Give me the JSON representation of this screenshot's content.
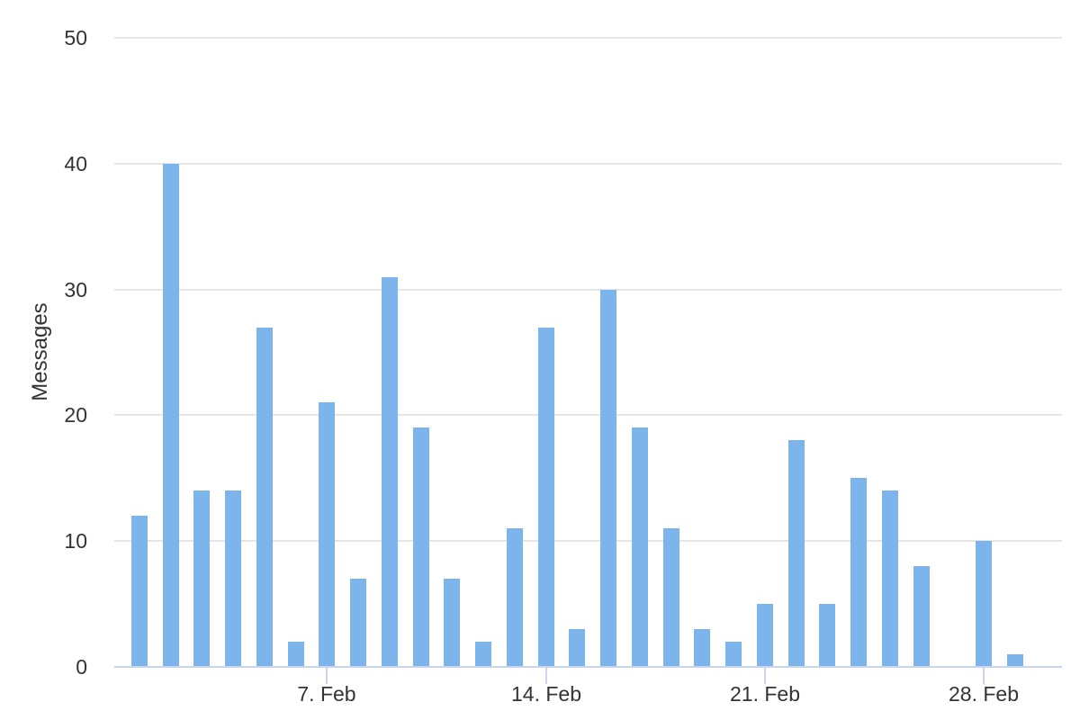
{
  "chart_data": {
    "type": "bar",
    "title": "",
    "xlabel": "",
    "ylabel": "Messages",
    "series_name": "Messages",
    "categories": [
      "1. Feb",
      "2. Feb",
      "3. Feb",
      "4. Feb",
      "5. Feb",
      "6. Feb",
      "7. Feb",
      "8. Feb",
      "9. Feb",
      "10. Feb",
      "11. Feb",
      "12. Feb",
      "13. Feb",
      "14. Feb",
      "15. Feb",
      "16. Feb",
      "17. Feb",
      "18. Feb",
      "19. Feb",
      "20. Feb",
      "21. Feb",
      "22. Feb",
      "23. Feb",
      "24. Feb",
      "25. Feb",
      "26. Feb",
      "27. Feb",
      "28. Feb",
      "29. Feb"
    ],
    "values": [
      12,
      40,
      14,
      14,
      27,
      2,
      21,
      7,
      31,
      19,
      7,
      2,
      11,
      27,
      3,
      30,
      19,
      11,
      3,
      2,
      5,
      18,
      5,
      15,
      14,
      8,
      0,
      10,
      1
    ],
    "ylim": [
      0,
      50
    ],
    "yticks": [
      0,
      10,
      20,
      30,
      40,
      50
    ],
    "xtick_labels": [
      "7. Feb",
      "14. Feb",
      "21. Feb",
      "28. Feb"
    ],
    "xtick_day_indices": [
      6,
      13,
      20,
      27
    ],
    "grid": "horizontal-on",
    "legend": "none"
  },
  "colors": {
    "bar": "#7cb5ec",
    "grid": "#e6e6e6",
    "axis": "#ccd6eb",
    "text": "#333333",
    "background": "#ffffff"
  }
}
